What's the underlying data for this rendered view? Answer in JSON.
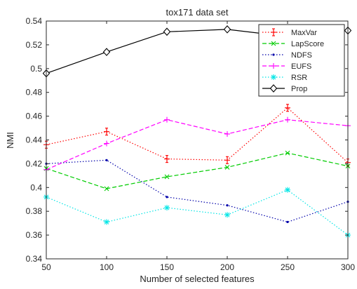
{
  "chart_data": {
    "type": "line",
    "title": "tox171 data set",
    "xlabel": "Number of selected features",
    "ylabel": "NMI",
    "x": [
      50,
      100,
      150,
      200,
      250,
      300
    ],
    "xlim": [
      50,
      300
    ],
    "ylim": [
      0.34,
      0.54
    ],
    "xticks": [
      "50",
      "100",
      "150",
      "200",
      "250",
      "300"
    ],
    "yticks": [
      "0.34",
      "0.36",
      "0.38",
      "0.4",
      "0.42",
      "0.44",
      "0.46",
      "0.48",
      "0.5",
      "0.52",
      "0.54"
    ],
    "grid": false,
    "legend_position": "top-right",
    "series": [
      {
        "name": "MaxVar",
        "color": "#ff0000",
        "dash": "dotted",
        "marker": "plus-errorbar",
        "values": [
          0.436,
          0.447,
          0.424,
          0.423,
          0.467,
          0.421
        ]
      },
      {
        "name": "LapScore",
        "color": "#00cc00",
        "dash": "dashed",
        "marker": "x",
        "values": [
          0.416,
          0.399,
          0.409,
          0.417,
          0.429,
          0.418
        ]
      },
      {
        "name": "NDFS",
        "color": "#0000aa",
        "dash": "dotted",
        "marker": "dot",
        "values": [
          0.42,
          0.423,
          0.392,
          0.385,
          0.371,
          0.388
        ]
      },
      {
        "name": "EUFS",
        "color": "#ff00ff",
        "dash": "dashed",
        "marker": "plus",
        "values": [
          0.415,
          0.437,
          0.457,
          0.445,
          0.457,
          0.452
        ]
      },
      {
        "name": "RSR",
        "color": "#00e5e5",
        "dash": "dotted",
        "marker": "asterisk",
        "values": [
          0.392,
          0.371,
          0.383,
          0.377,
          0.398,
          0.36
        ]
      },
      {
        "name": "Prop",
        "color": "#000000",
        "dash": "solid",
        "marker": "diamond",
        "values": [
          0.496,
          0.514,
          0.531,
          0.533,
          0.527,
          0.532
        ]
      }
    ]
  }
}
